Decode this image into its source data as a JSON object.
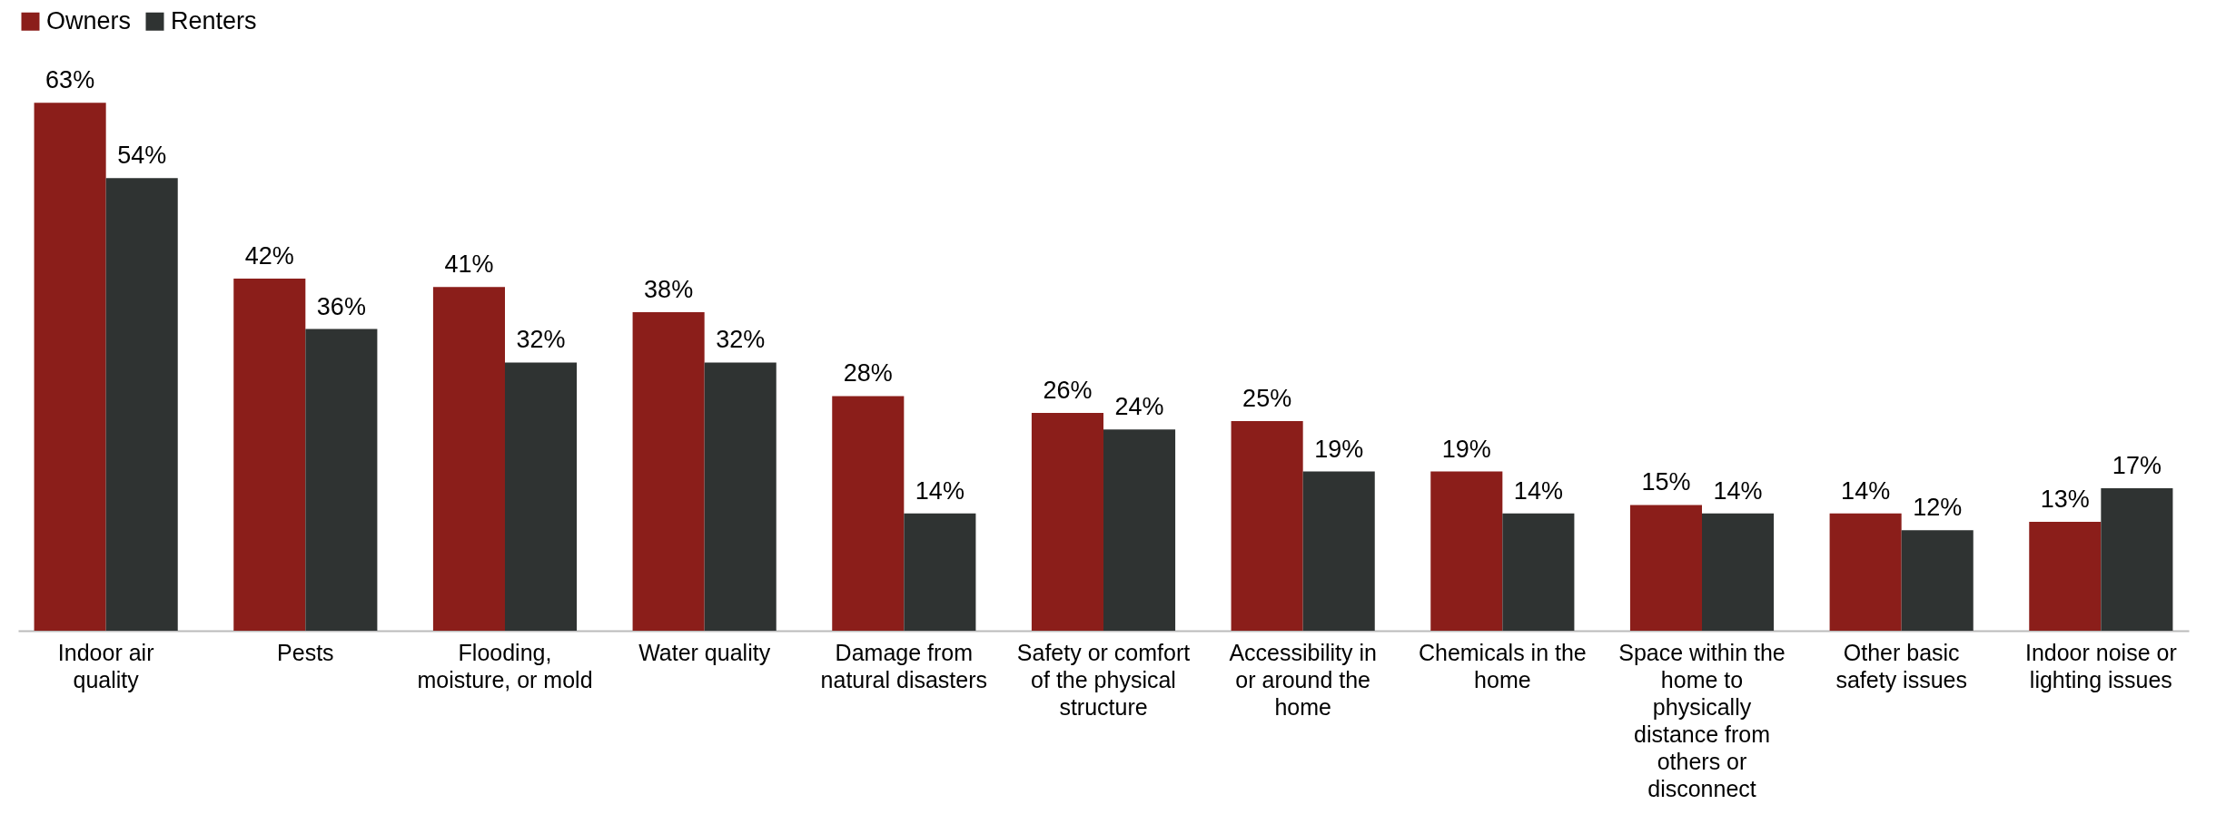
{
  "chart_data": {
    "type": "bar",
    "legend": "top",
    "categories": [
      "Indoor air quality",
      "Pests",
      "Flooding, moisture, or mold",
      "Water quality",
      "Damage from natural disasters",
      "Safety or comfort of the physical structure",
      "Accessibility in or around the home",
      "Chemicals in the home",
      "Space within the home to physically distance from others or disconnect",
      "Other basic safety issues",
      "Indoor noise or lighting issues"
    ],
    "series": [
      {
        "name": "Owners",
        "color": "#8b1e1a",
        "values": [
          63,
          42,
          41,
          38,
          28,
          26,
          25,
          19,
          15,
          14,
          13
        ],
        "value_labels": [
          "63%",
          "42%",
          "41%",
          "38%",
          "28%",
          "26%",
          "25%",
          "19%",
          "15%",
          "14%",
          "13%"
        ]
      },
      {
        "name": "Renters",
        "color": "#2f3332",
        "values": [
          54,
          36,
          32,
          32,
          14,
          24,
          19,
          14,
          14,
          12,
          17
        ],
        "value_labels": [
          "54%",
          "36%",
          "32%",
          "32%",
          "14%",
          "24%",
          "19%",
          "14%",
          "14%",
          "12%",
          "17%"
        ]
      }
    ]
  }
}
